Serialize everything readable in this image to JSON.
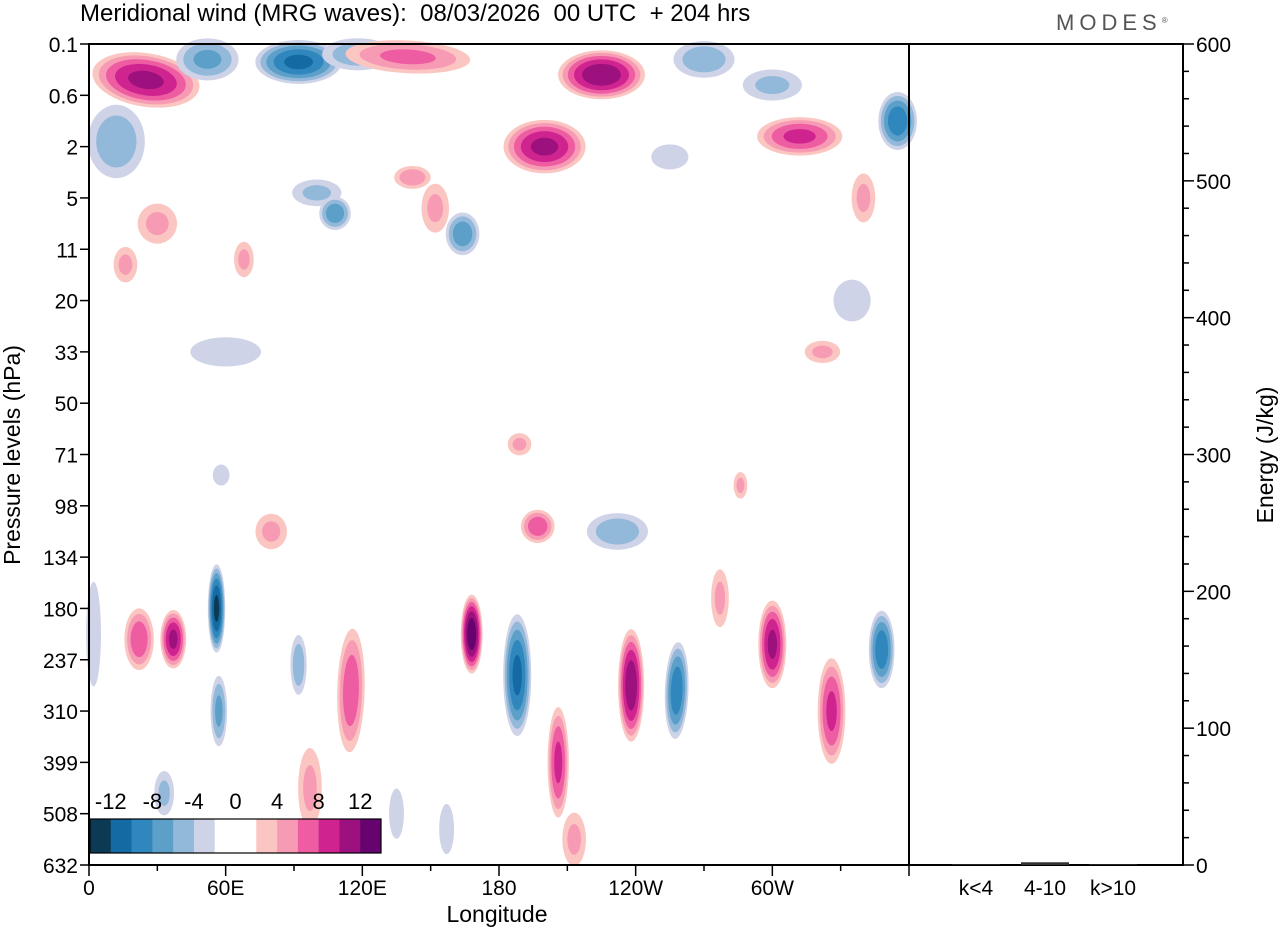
{
  "header": {
    "title": "Meridional wind (MRG waves):  08/03/2026  00 UTC  + 204 hrs",
    "brand": "MODES",
    "brand_mark": "®"
  },
  "chart_data": [
    {
      "type": "heatmap",
      "title": "Meridional wind (MRG waves):  08/03/2026  00 UTC  + 204 hrs",
      "xlabel": "Longitude",
      "ylabel": "Pressure levels (hPa)",
      "x_ticks": [
        {
          "lon": 0,
          "label": "0"
        },
        {
          "lon": 60,
          "label": "60E"
        },
        {
          "lon": 120,
          "label": "120E"
        },
        {
          "lon": 180,
          "label": "180"
        },
        {
          "lon": 240,
          "label": "120W"
        },
        {
          "lon": 300,
          "label": "60W"
        }
      ],
      "xlim": [
        0,
        360
      ],
      "y_levels": [
        "0.1",
        "0.6",
        "2",
        "5",
        "11",
        "20",
        "33",
        "50",
        "71",
        "98",
        "134",
        "180",
        "237",
        "310",
        "399",
        "508",
        "632"
      ],
      "colorbar": {
        "labels": [
          "-12",
          "-8",
          "-4",
          "0",
          "4",
          "8",
          "12"
        ],
        "colors": [
          "#0c3a55",
          "#146ba3",
          "#2f87bd",
          "#5c9fc9",
          "#92b8da",
          "#cfd3e8",
          "#ffffff",
          "#ffffff",
          "#fbc6c2",
          "#f79bb4",
          "#ee5ca2",
          "#cf2490",
          "#9c117d",
          "#66036f"
        ]
      },
      "features": [
        {
          "lon": 25,
          "lev": 0.7,
          "w": 50,
          "h": 1.1,
          "v": 9,
          "tilt": 9
        },
        {
          "lon": 52,
          "lev": 0.3,
          "w": 30,
          "h": 0.9,
          "v": -5
        },
        {
          "lon": 92,
          "lev": 0.35,
          "w": 40,
          "h": 0.9,
          "v": -9
        },
        {
          "lon": 118,
          "lev": 0.2,
          "w": 35,
          "h": 0.7,
          "v": -4
        },
        {
          "lon": 140,
          "lev": 0.25,
          "w": 60,
          "h": 0.7,
          "v": 5,
          "tilt": 3
        },
        {
          "lon": 225,
          "lev": 0.6,
          "w": 40,
          "h": 1.0,
          "v": 10
        },
        {
          "lon": 270,
          "lev": 0.3,
          "w": 30,
          "h": 0.8,
          "v": -4
        },
        {
          "lon": 300,
          "lev": 0.8,
          "w": 30,
          "h": 0.7,
          "v": -3
        },
        {
          "lon": 355,
          "lev": 1.5,
          "w": 18,
          "h": 1.2,
          "v": -8
        },
        {
          "lon": 12,
          "lev": 1.9,
          "w": 28,
          "h": 1.6,
          "v": -4
        },
        {
          "lon": 30,
          "lev": 3.5,
          "w": 20,
          "h": 0.9,
          "v": 3
        },
        {
          "lon": 200,
          "lev": 2.0,
          "w": 38,
          "h": 1.1,
          "v": 9
        },
        {
          "lon": 312,
          "lev": 1.8,
          "w": 40,
          "h": 0.8,
          "v": 7
        },
        {
          "lon": 255,
          "lev": 2.2,
          "w": 20,
          "h": 0.6,
          "v": -2
        },
        {
          "lon": 100,
          "lev": 2.9,
          "w": 25,
          "h": 0.6,
          "v": -3
        },
        {
          "lon": 142,
          "lev": 2.6,
          "w": 18,
          "h": 0.5,
          "v": 4
        },
        {
          "lon": 164,
          "lev": 3.7,
          "w": 16,
          "h": 0.9,
          "v": -6
        },
        {
          "lon": 152,
          "lev": 3.2,
          "w": 14,
          "h": 1.1,
          "v": 3
        },
        {
          "lon": 108,
          "lev": 3.3,
          "w": 15,
          "h": 0.7,
          "v": -6
        },
        {
          "lon": 340,
          "lev": 3.0,
          "w": 12,
          "h": 1.1,
          "v": 3
        },
        {
          "lon": 68,
          "lev": 4.2,
          "w": 10,
          "h": 0.8,
          "v": 3
        },
        {
          "lon": 16,
          "lev": 4.3,
          "w": 12,
          "h": 0.8,
          "v": 3
        },
        {
          "lon": 60,
          "lev": 6.0,
          "w": 38,
          "h": 0.7,
          "v": -2
        },
        {
          "lon": 335,
          "lev": 5.0,
          "w": 20,
          "h": 1.0,
          "v": -2
        },
        {
          "lon": 322,
          "lev": 6.0,
          "w": 18,
          "h": 0.5,
          "v": 3
        },
        {
          "lon": 189,
          "lev": 7.8,
          "w": 12,
          "h": 0.5,
          "v": 3
        },
        {
          "lon": 286,
          "lev": 8.6,
          "w": 7,
          "h": 0.6,
          "v": 3
        },
        {
          "lon": 58,
          "lev": 8.4,
          "w": 9,
          "h": 0.5,
          "v": -2
        },
        {
          "lon": 80,
          "lev": 9.5,
          "w": 16,
          "h": 0.8,
          "v": 3
        },
        {
          "lon": 197,
          "lev": 9.4,
          "w": 16,
          "h": 0.7,
          "v": 6
        },
        {
          "lon": 232,
          "lev": 9.5,
          "w": 30,
          "h": 0.8,
          "v": -4
        },
        {
          "lon": 2,
          "lev": 11.5,
          "w": 8,
          "h": 2.5,
          "v": -2
        },
        {
          "lon": 22,
          "lev": 11.6,
          "w": 14,
          "h": 1.3,
          "v": 6
        },
        {
          "lon": 37,
          "lev": 11.6,
          "w": 12,
          "h": 1.2,
          "v": 9
        },
        {
          "lon": 56,
          "lev": 11.0,
          "w": 8,
          "h": 1.8,
          "v": -11
        },
        {
          "lon": 57,
          "lev": 13.0,
          "w": 8,
          "h": 1.5,
          "v": -5
        },
        {
          "lon": 92,
          "lev": 12.1,
          "w": 8,
          "h": 1.3,
          "v": -4
        },
        {
          "lon": 115,
          "lev": 12.6,
          "w": 13,
          "h": 2.6,
          "v": 6,
          "tilt": 1.5
        },
        {
          "lon": 168,
          "lev": 11.5,
          "w": 10,
          "h": 1.6,
          "v": 12
        },
        {
          "lon": 188,
          "lev": 12.3,
          "w": 13,
          "h": 2.5,
          "v": -9
        },
        {
          "lon": 206,
          "lev": 14.0,
          "w": 10,
          "h": 2.3,
          "v": 7
        },
        {
          "lon": 238,
          "lev": 12.5,
          "w": 12,
          "h": 2.3,
          "v": 10
        },
        {
          "lon": 258,
          "lev": 12.6,
          "w": 11,
          "h": 2.0,
          "v": -8,
          "tilt": 2
        },
        {
          "lon": 277,
          "lev": 10.8,
          "w": 9,
          "h": 1.3,
          "v": 3
        },
        {
          "lon": 300,
          "lev": 11.7,
          "w": 13,
          "h": 1.8,
          "v": 9
        },
        {
          "lon": 326,
          "lev": 13.0,
          "w": 13,
          "h": 2.2,
          "v": 7
        },
        {
          "lon": 348,
          "lev": 11.8,
          "w": 12,
          "h": 1.6,
          "v": -8
        },
        {
          "lon": 97,
          "lev": 14.5,
          "w": 12,
          "h": 1.8,
          "v": 3
        },
        {
          "lon": 33,
          "lev": 14.6,
          "w": 10,
          "h": 1.0,
          "v": -3
        },
        {
          "lon": 135,
          "lev": 15.0,
          "w": 8,
          "h": 1.2,
          "v": -2
        },
        {
          "lon": 213,
          "lev": 15.5,
          "w": 12,
          "h": 1.2,
          "v": 3
        },
        {
          "lon": 157,
          "lev": 15.3,
          "w": 8,
          "h": 1.2,
          "v": -2
        }
      ]
    },
    {
      "type": "bar",
      "categories": [
        "k<4",
        "4-10",
        "k>10"
      ],
      "values": [
        0.5,
        2,
        0.5
      ],
      "ylabel": "Energy (J/kg)",
      "ylim": [
        0,
        600
      ],
      "y_ticks": [
        0,
        100,
        200,
        300,
        400,
        500,
        600
      ]
    }
  ]
}
